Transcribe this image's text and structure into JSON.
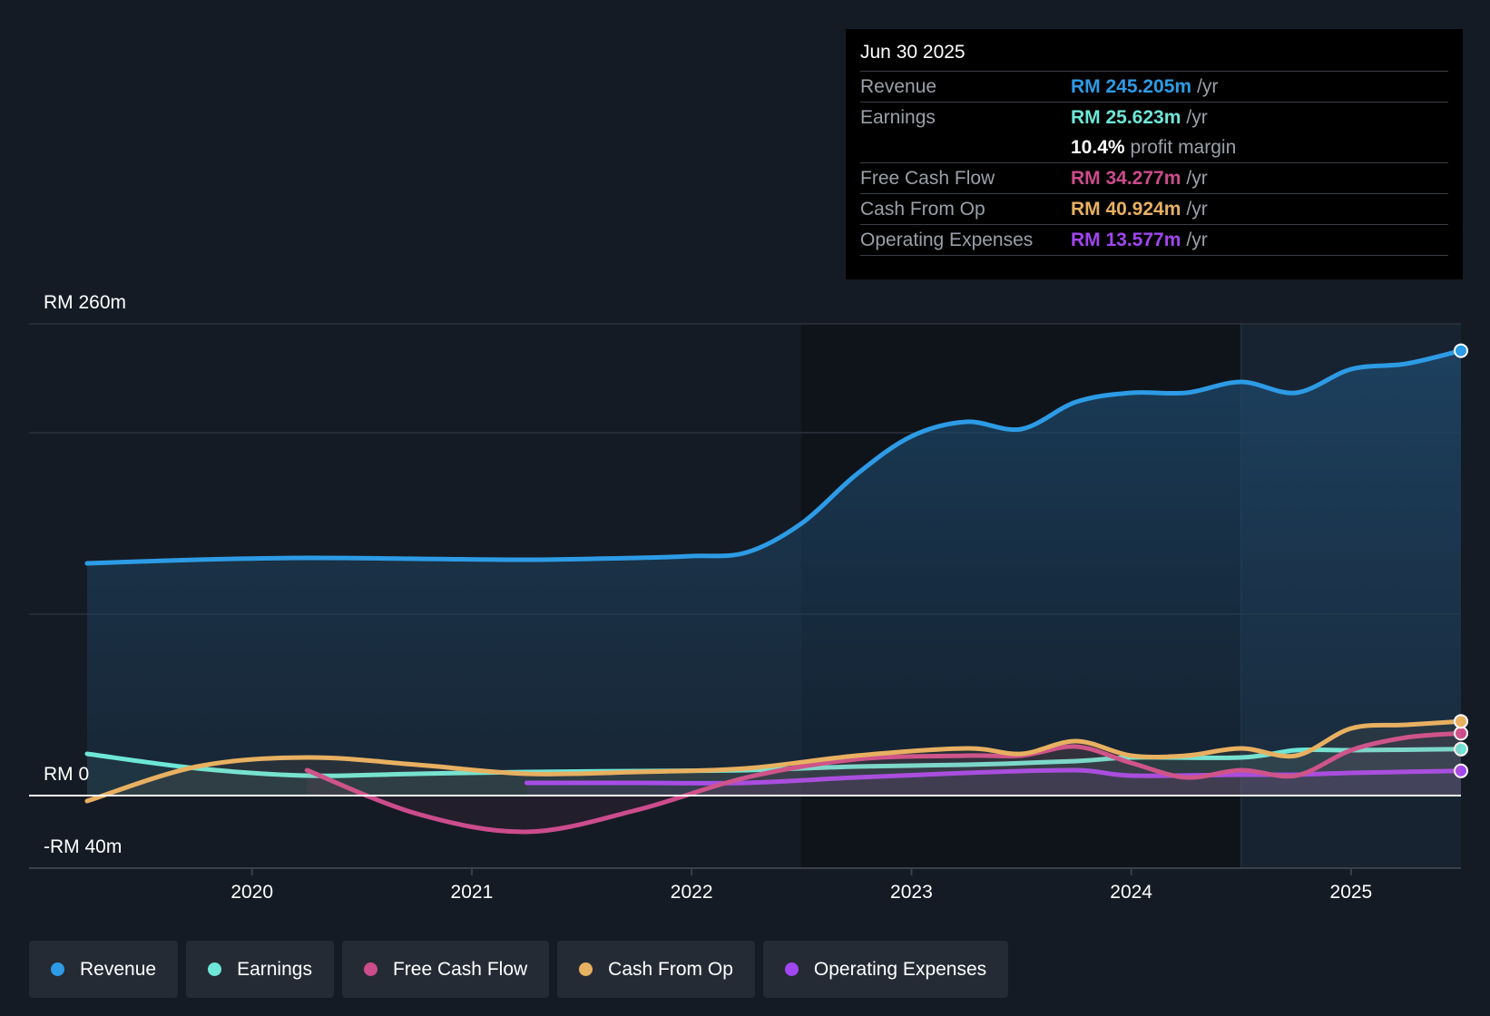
{
  "tooltip": {
    "date": "Jun 30 2025",
    "rows": [
      {
        "label": "Revenue",
        "value": "RM 245.205m",
        "unit": "/yr",
        "color": "#2d9be5"
      },
      {
        "label": "Earnings",
        "value": "RM 25.623m",
        "unit": "/yr",
        "color": "#6ee7d8"
      },
      {
        "label": "",
        "value": "10.4%",
        "unit": "profit margin",
        "color": "#ffffff"
      },
      {
        "label": "Free Cash Flow",
        "value": "RM 34.277m",
        "unit": "/yr",
        "color": "#cc4c8c"
      },
      {
        "label": "Cash From Op",
        "value": "RM 40.924m",
        "unit": "/yr",
        "color": "#e8b061"
      },
      {
        "label": "Operating Expenses",
        "value": "RM 13.577m",
        "unit": "/yr",
        "color": "#a146f0"
      }
    ]
  },
  "legend": [
    {
      "label": "Revenue",
      "color": "#2d9be5"
    },
    {
      "label": "Earnings",
      "color": "#6ee7d8"
    },
    {
      "label": "Free Cash Flow",
      "color": "#cc4c8c"
    },
    {
      "label": "Cash From Op",
      "color": "#e8b061"
    },
    {
      "label": "Operating Expenses",
      "color": "#a146f0"
    }
  ],
  "chart_data": {
    "type": "line",
    "title": "",
    "y_labels": {
      "top": "RM 260m",
      "zero": "RM 0",
      "bottom": "-RM 40m"
    },
    "ylim": [
      -40,
      260
    ],
    "xlim": [
      2019.25,
      2025.5
    ],
    "x_ticks": [
      2020,
      2021,
      2022,
      2023,
      2024,
      2025
    ],
    "x_tick_labels": [
      "2020",
      "2021",
      "2022",
      "2023",
      "2024",
      "2025"
    ],
    "forecast_start": 2024.5,
    "series": [
      {
        "name": "Revenue",
        "color": "#2d9be5",
        "fill": true,
        "points": [
          [
            2019.25,
            128
          ],
          [
            2019.75,
            130
          ],
          [
            2020.25,
            131
          ],
          [
            2020.75,
            130.5
          ],
          [
            2021.25,
            130
          ],
          [
            2021.75,
            131
          ],
          [
            2022,
            132
          ],
          [
            2022.25,
            134
          ],
          [
            2022.5,
            150
          ],
          [
            2022.75,
            177
          ],
          [
            2023,
            198
          ],
          [
            2023.25,
            206
          ],
          [
            2023.5,
            202
          ],
          [
            2023.75,
            217
          ],
          [
            2024,
            222
          ],
          [
            2024.25,
            222
          ],
          [
            2024.5,
            228
          ],
          [
            2024.75,
            222
          ],
          [
            2025,
            235
          ],
          [
            2025.25,
            238
          ],
          [
            2025.5,
            245.2
          ]
        ]
      },
      {
        "name": "Earnings",
        "color": "#6ee7d8",
        "points": [
          [
            2019.25,
            23
          ],
          [
            2019.75,
            15
          ],
          [
            2020.25,
            11
          ],
          [
            2020.75,
            12
          ],
          [
            2021.25,
            13
          ],
          [
            2021.75,
            13.5
          ],
          [
            2022.25,
            14
          ],
          [
            2022.75,
            16
          ],
          [
            2023.25,
            17
          ],
          [
            2023.75,
            19
          ],
          [
            2024,
            21
          ],
          [
            2024.5,
            21
          ],
          [
            2024.75,
            25
          ],
          [
            2025,
            25
          ],
          [
            2025.5,
            25.6
          ]
        ]
      },
      {
        "name": "Free Cash Flow",
        "color": "#cc4c8c",
        "points": [
          [
            2020.25,
            14
          ],
          [
            2020.75,
            -10
          ],
          [
            2021.25,
            -20
          ],
          [
            2021.75,
            -8
          ],
          [
            2022.25,
            10
          ],
          [
            2022.75,
            20
          ],
          [
            2023.25,
            22
          ],
          [
            2023.5,
            22
          ],
          [
            2023.75,
            27
          ],
          [
            2024,
            18
          ],
          [
            2024.25,
            10
          ],
          [
            2024.5,
            14
          ],
          [
            2024.75,
            11
          ],
          [
            2025,
            25
          ],
          [
            2025.25,
            32
          ],
          [
            2025.5,
            34.3
          ]
        ]
      },
      {
        "name": "Cash From Op",
        "color": "#e8b061",
        "points": [
          [
            2019.25,
            -3
          ],
          [
            2019.75,
            16
          ],
          [
            2020.25,
            21
          ],
          [
            2020.75,
            17
          ],
          [
            2021.25,
            12
          ],
          [
            2021.75,
            13
          ],
          [
            2022.25,
            15
          ],
          [
            2022.75,
            22
          ],
          [
            2023.25,
            26
          ],
          [
            2023.5,
            23
          ],
          [
            2023.75,
            30
          ],
          [
            2024,
            22
          ],
          [
            2024.25,
            22
          ],
          [
            2024.5,
            26
          ],
          [
            2024.75,
            22
          ],
          [
            2025,
            37
          ],
          [
            2025.25,
            39
          ],
          [
            2025.5,
            40.9
          ]
        ]
      },
      {
        "name": "Operating Expenses",
        "color": "#a146f0",
        "points": [
          [
            2021.25,
            7
          ],
          [
            2021.75,
            7
          ],
          [
            2022.25,
            7
          ],
          [
            2022.75,
            10
          ],
          [
            2023.25,
            12.5
          ],
          [
            2023.75,
            14
          ],
          [
            2024,
            11
          ],
          [
            2024.5,
            11.5
          ],
          [
            2024.75,
            11.5
          ],
          [
            2025,
            12.5
          ],
          [
            2025.5,
            13.6
          ]
        ]
      }
    ]
  }
}
